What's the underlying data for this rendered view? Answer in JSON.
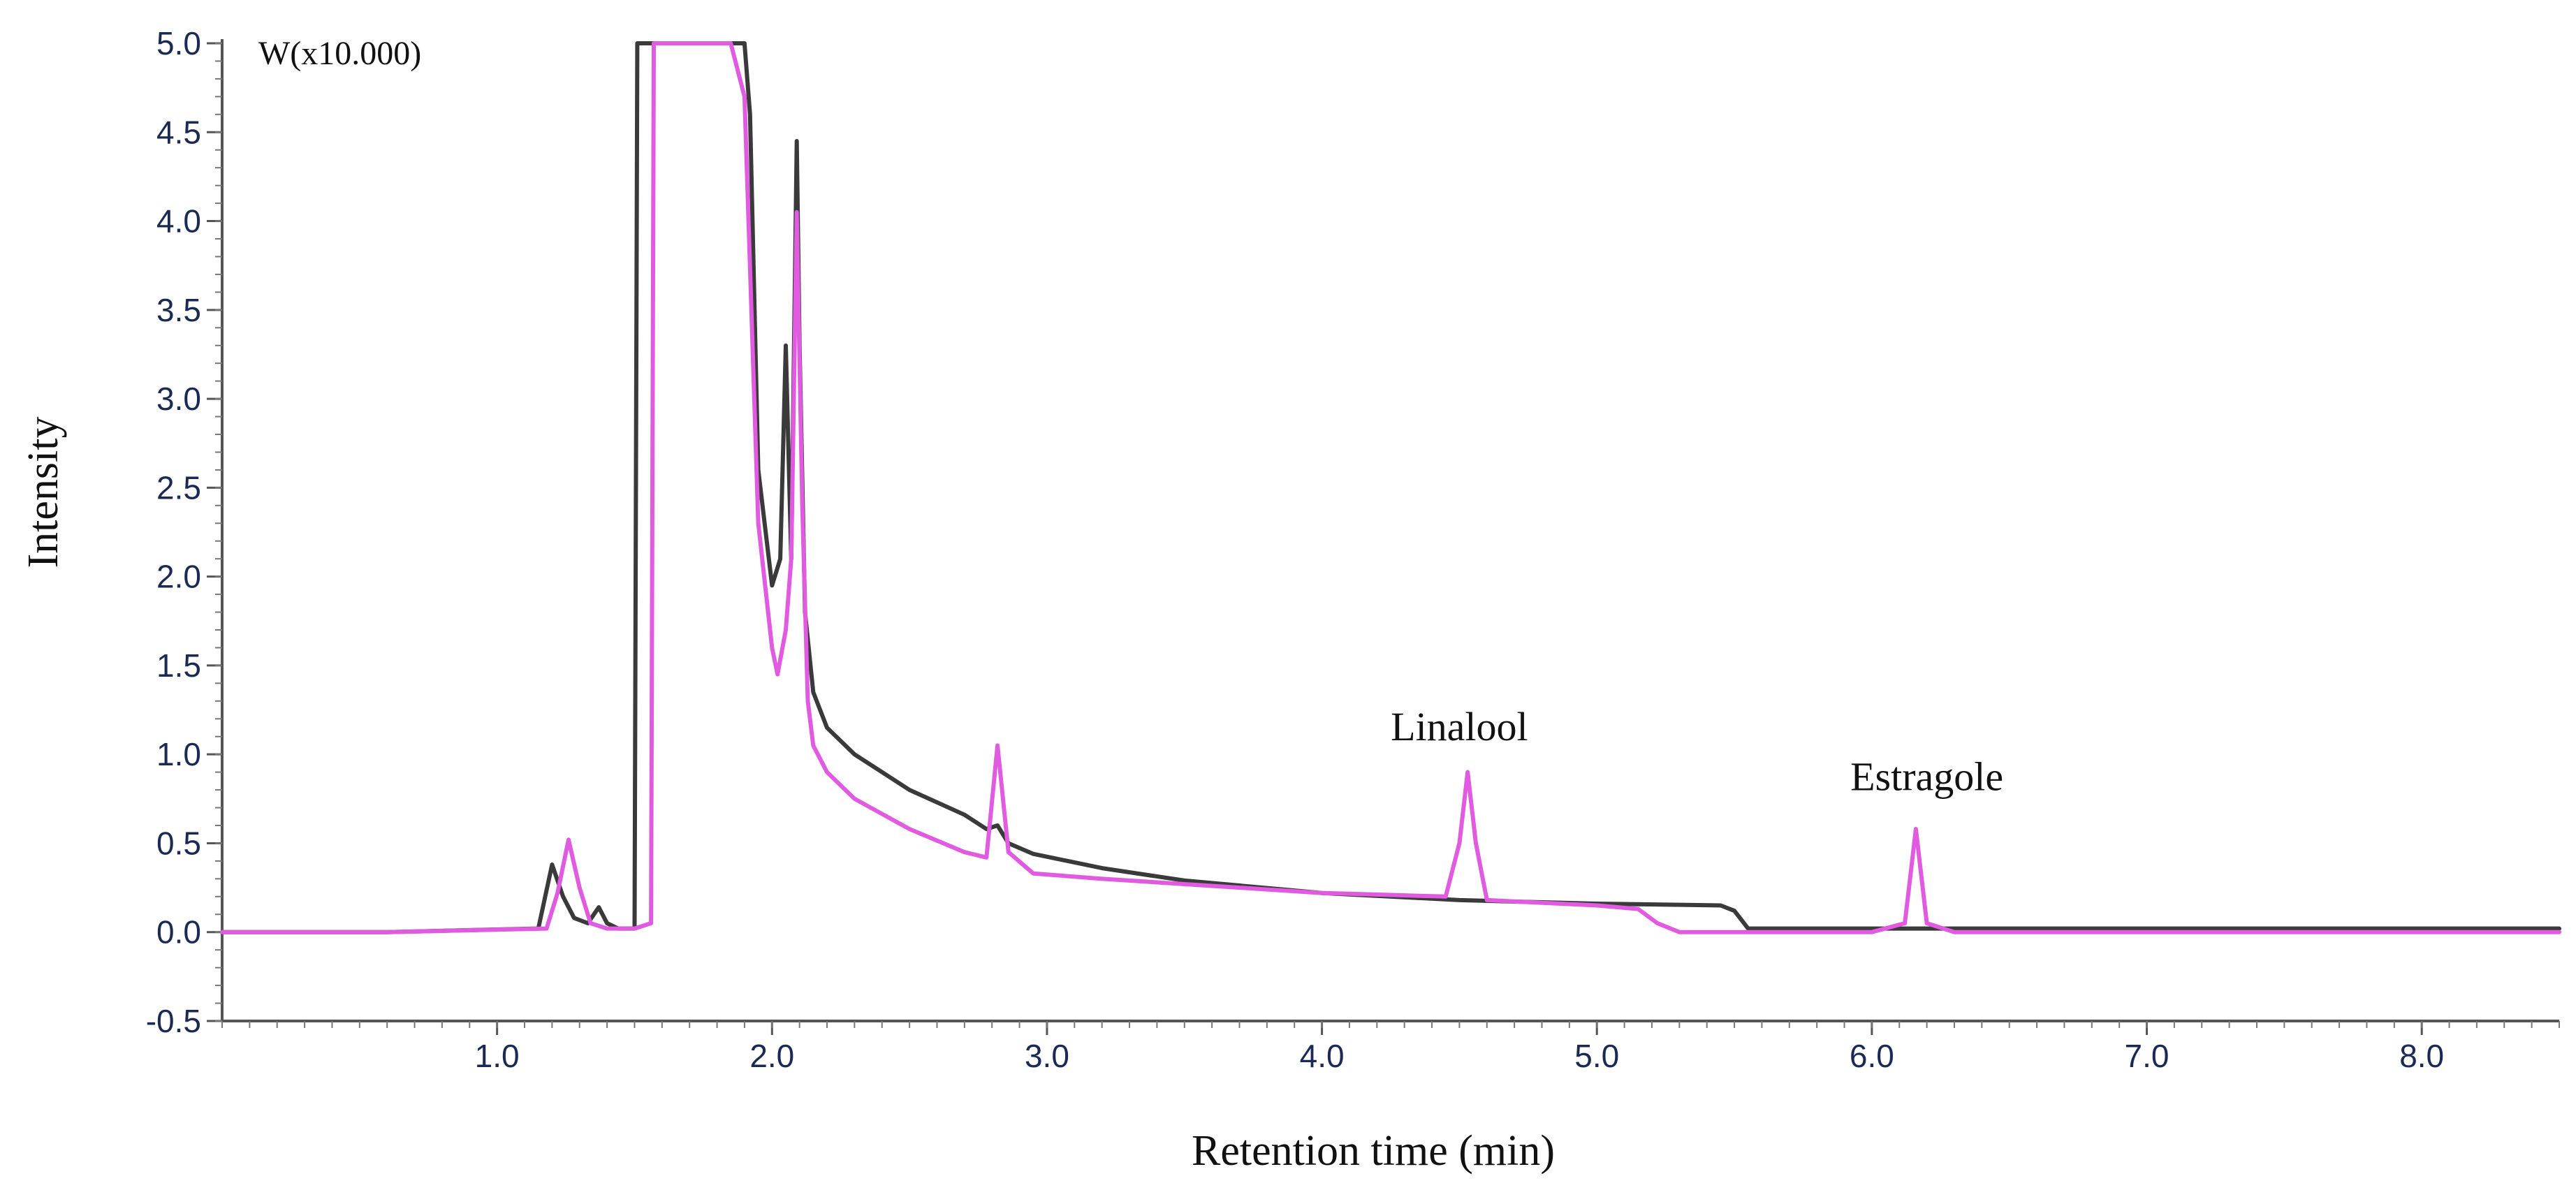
{
  "chart_data": {
    "type": "line",
    "title": "",
    "xlabel": "Retention time (min)",
    "ylabel": "Intensity",
    "y_unit_label": "W(x10.000)",
    "xlim": [
      0.0,
      8.5
    ],
    "ylim": [
      -0.5,
      5.0
    ],
    "x_ticks": [
      "1.0",
      "2.0",
      "3.0",
      "4.0",
      "5.0",
      "6.0",
      "7.0",
      "8.0"
    ],
    "y_ticks": [
      "-0.5",
      "0.0",
      "0.5",
      "1.0",
      "1.5",
      "2.0",
      "2.5",
      "3.0",
      "3.5",
      "4.0",
      "4.5",
      "5.0"
    ],
    "grid": false,
    "legend": "none",
    "series": [
      {
        "color": "#3a3a3a",
        "x": [
          0.0,
          0.6,
          1.15,
          1.2,
          1.24,
          1.28,
          1.33,
          1.37,
          1.4,
          1.44,
          1.48,
          1.5,
          1.51,
          1.52,
          1.9,
          1.92,
          1.95,
          2.0,
          2.03,
          2.05,
          2.07,
          2.09,
          2.1,
          2.12,
          2.15,
          2.2,
          2.3,
          2.5,
          2.7,
          2.78,
          2.82,
          2.86,
          2.95,
          3.2,
          3.5,
          4.0,
          4.5,
          5.0,
          5.45,
          5.5,
          5.55,
          6.0,
          7.0,
          8.5
        ],
        "y": [
          0.0,
          0.0,
          0.02,
          0.38,
          0.2,
          0.08,
          0.05,
          0.14,
          0.05,
          0.02,
          0.02,
          0.02,
          5.0,
          5.0,
          5.0,
          4.6,
          2.6,
          1.95,
          2.1,
          3.3,
          2.1,
          4.45,
          3.3,
          1.8,
          1.35,
          1.15,
          1.0,
          0.8,
          0.66,
          0.58,
          0.6,
          0.5,
          0.44,
          0.36,
          0.29,
          0.22,
          0.18,
          0.16,
          0.15,
          0.12,
          0.02,
          0.02,
          0.02,
          0.02
        ]
      },
      {
        "color": "#e05be0",
        "x": [
          0.0,
          0.6,
          1.18,
          1.22,
          1.26,
          1.3,
          1.34,
          1.4,
          1.5,
          1.56,
          1.57,
          1.6,
          1.85,
          1.9,
          1.95,
          2.0,
          2.02,
          2.05,
          2.07,
          2.09,
          2.11,
          2.13,
          2.15,
          2.2,
          2.3,
          2.5,
          2.7,
          2.78,
          2.82,
          2.86,
          2.95,
          3.2,
          3.5,
          4.0,
          4.45,
          4.5,
          4.53,
          4.56,
          4.6,
          5.0,
          5.15,
          5.22,
          5.3,
          6.0,
          6.12,
          6.16,
          6.2,
          6.3,
          7.0,
          8.5
        ],
        "y": [
          0.0,
          0.0,
          0.02,
          0.22,
          0.52,
          0.25,
          0.05,
          0.02,
          0.02,
          0.05,
          5.0,
          5.0,
          5.0,
          4.7,
          2.3,
          1.6,
          1.45,
          1.7,
          2.1,
          4.05,
          2.4,
          1.3,
          1.05,
          0.9,
          0.75,
          0.58,
          0.45,
          0.42,
          1.05,
          0.45,
          0.33,
          0.3,
          0.27,
          0.22,
          0.2,
          0.5,
          0.9,
          0.5,
          0.18,
          0.15,
          0.13,
          0.05,
          0.0,
          0.0,
          0.05,
          0.58,
          0.05,
          0.0,
          0.0,
          0.0
        ]
      }
    ],
    "annotations": [
      {
        "text": "Linalool",
        "x": 4.5,
        "y": 1.0
      },
      {
        "text": "Estragole",
        "x": 6.2,
        "y": 0.72
      }
    ]
  }
}
